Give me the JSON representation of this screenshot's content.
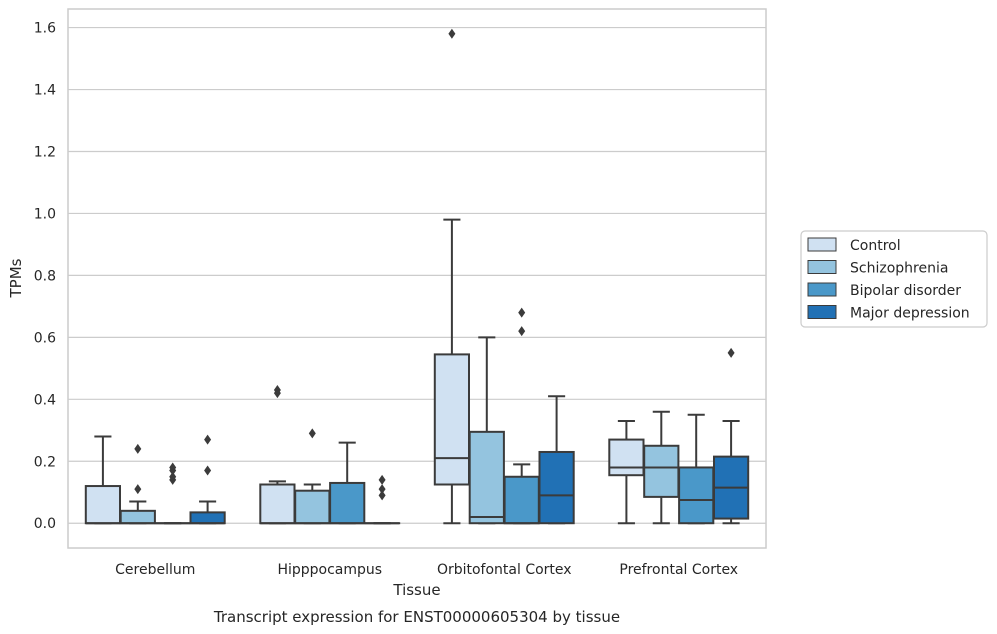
{
  "chart_data": {
    "type": "box",
    "xlabel": "Tissue",
    "ylabel": "TPMs",
    "caption": "Transcript expression for ENST00000605304 by tissue",
    "ylim": [
      -0.08,
      1.66
    ],
    "yticks": [
      0.0,
      0.2,
      0.4,
      0.6,
      0.8,
      1.0,
      1.2,
      1.4,
      1.6
    ],
    "ytick_labels": [
      "0.0",
      "0.2",
      "0.4",
      "0.6",
      "0.8",
      "1.0",
      "1.2",
      "1.4",
      "1.6"
    ],
    "grid": "horizontal",
    "legend_position": "right",
    "categories": [
      "Cerebellum",
      "Hipppocampus",
      "Orbitofontal Cortex",
      "Prefrontal Cortex"
    ],
    "series": [
      {
        "name": "Control",
        "color": "#d0e1f2",
        "boxes": [
          {
            "q1": 0.0,
            "median": 0.0,
            "q3": 0.12,
            "whislo": 0.0,
            "whishi": 0.28,
            "fliers": []
          },
          {
            "q1": 0.0,
            "median": 0.0,
            "q3": 0.125,
            "whislo": 0.0,
            "whishi": 0.135,
            "fliers": [
              0.42,
              0.43
            ]
          },
          {
            "q1": 0.125,
            "median": 0.21,
            "q3": 0.545,
            "whislo": 0.0,
            "whishi": 0.98,
            "fliers": [
              1.58
            ]
          },
          {
            "q1": 0.155,
            "median": 0.18,
            "q3": 0.27,
            "whislo": 0.0,
            "whishi": 0.33,
            "fliers": []
          }
        ]
      },
      {
        "name": "Schizophrenia",
        "color": "#94c4df",
        "boxes": [
          {
            "q1": 0.0,
            "median": 0.0,
            "q3": 0.04,
            "whislo": 0.0,
            "whishi": 0.07,
            "fliers": [
              0.11,
              0.24
            ]
          },
          {
            "q1": 0.0,
            "median": 0.0,
            "q3": 0.105,
            "whislo": 0.0,
            "whishi": 0.125,
            "fliers": [
              0.29
            ]
          },
          {
            "q1": 0.0,
            "median": 0.02,
            "q3": 0.295,
            "whislo": 0.0,
            "whishi": 0.6,
            "fliers": []
          },
          {
            "q1": 0.085,
            "median": 0.18,
            "q3": 0.25,
            "whislo": 0.0,
            "whishi": 0.36,
            "fliers": []
          }
        ]
      },
      {
        "name": "Bipolar disorder",
        "color": "#4a98c9",
        "boxes": [
          {
            "q1": 0.0,
            "median": 0.0,
            "q3": 0.0,
            "whislo": 0.0,
            "whishi": 0.0,
            "fliers": [
              0.14,
              0.15,
              0.17,
              0.18
            ]
          },
          {
            "q1": 0.0,
            "median": 0.0,
            "q3": 0.13,
            "whislo": 0.0,
            "whishi": 0.26,
            "fliers": []
          },
          {
            "q1": 0.0,
            "median": 0.0,
            "q3": 0.15,
            "whislo": 0.0,
            "whishi": 0.19,
            "fliers": [
              0.62,
              0.68
            ]
          },
          {
            "q1": 0.0,
            "median": 0.075,
            "q3": 0.18,
            "whislo": 0.0,
            "whishi": 0.35,
            "fliers": []
          }
        ]
      },
      {
        "name": "Major depression",
        "color": "#2171b5",
        "boxes": [
          {
            "q1": 0.0,
            "median": 0.0,
            "q3": 0.035,
            "whislo": 0.0,
            "whishi": 0.07,
            "fliers": [
              0.17,
              0.27
            ]
          },
          {
            "q1": 0.0,
            "median": 0.0,
            "q3": 0.0,
            "whislo": 0.0,
            "whishi": 0.0,
            "fliers": [
              0.09,
              0.11,
              0.14
            ]
          },
          {
            "q1": 0.0,
            "median": 0.09,
            "q3": 0.23,
            "whislo": 0.0,
            "whishi": 0.41,
            "fliers": []
          },
          {
            "q1": 0.015,
            "median": 0.115,
            "q3": 0.215,
            "whislo": 0.0,
            "whishi": 0.33,
            "fliers": [
              0.55
            ]
          }
        ]
      }
    ]
  }
}
